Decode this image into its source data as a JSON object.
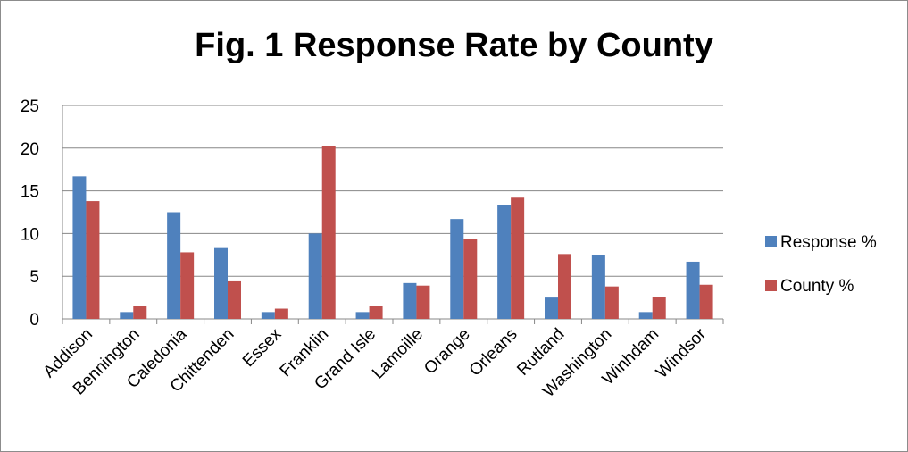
{
  "chart_data": {
    "type": "bar",
    "title": "Fig. 1 Response Rate by County",
    "xlabel": "",
    "ylabel": "",
    "ylim": [
      0,
      25
    ],
    "yticks": [
      0,
      5,
      10,
      15,
      20,
      25
    ],
    "grid": true,
    "legend_position": "right",
    "categories": [
      "Addison",
      "Bennington",
      "Caledonia",
      "Chittenden",
      "Essex",
      "Franklin",
      "Grand Isle",
      "Lamoille",
      "Orange",
      "Orleans",
      "Rutland",
      "Washington",
      "Winhdam",
      "Windsor"
    ],
    "series": [
      {
        "name": "Response %",
        "color": "#4f81bd",
        "values": [
          16.7,
          0.8,
          12.5,
          8.3,
          0.8,
          10.0,
          0.8,
          4.2,
          11.7,
          13.3,
          2.5,
          7.5,
          0.8,
          6.7
        ]
      },
      {
        "name": "County %",
        "color": "#c0504d",
        "values": [
          13.8,
          1.5,
          7.8,
          4.4,
          1.2,
          20.2,
          1.5,
          3.9,
          9.4,
          14.2,
          7.6,
          3.8,
          2.6,
          4.0
        ]
      }
    ]
  }
}
